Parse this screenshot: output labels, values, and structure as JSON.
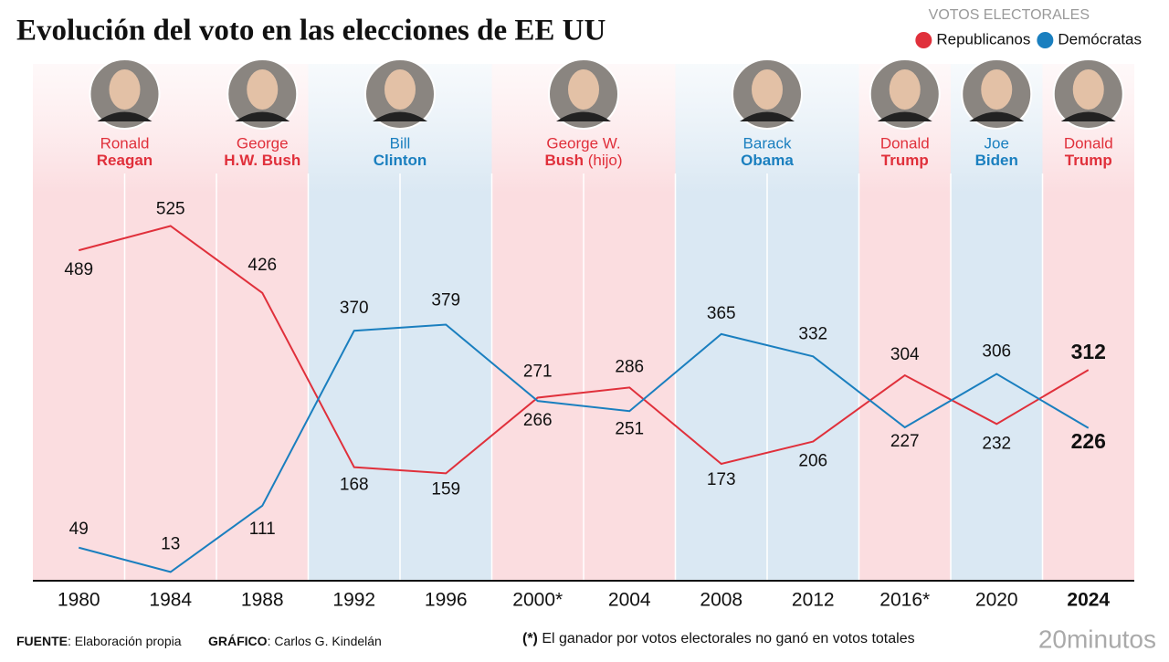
{
  "chart_data": {
    "type": "line",
    "title": "Evolución del voto en las elecciones de EE UU",
    "legend_title": "VOTOS ELECTORALES",
    "categories": [
      "1980",
      "1984",
      "1988",
      "1992",
      "1996",
      "2000*",
      "2004",
      "2008",
      "2012",
      "2016*",
      "2020",
      "2024"
    ],
    "series": [
      {
        "name": "Republicanos",
        "color": "#e0303b",
        "values": [
          489,
          525,
          426,
          168,
          159,
          271,
          286,
          173,
          206,
          304,
          232,
          312
        ]
      },
      {
        "name": "Demócratas",
        "color": "#1a7fbf",
        "values": [
          49,
          13,
          111,
          370,
          379,
          266,
          251,
          365,
          332,
          227,
          306,
          226
        ]
      }
    ],
    "presidents": [
      {
        "first": "Ronald",
        "last": "Reagan",
        "party": "Republicanos"
      },
      {
        "first": "George",
        "last": "H.W. Bush",
        "party": "Republicanos"
      },
      {
        "first": "Bill",
        "last": "Clinton",
        "party": "Demócratas"
      },
      {
        "first": "George W.",
        "last": "Bush",
        "note": "(hijo)",
        "party": "Republicanos"
      },
      {
        "first": "Barack",
        "last": "Obama",
        "party": "Demócratas"
      },
      {
        "first": "Donald",
        "last": "Trump",
        "party": "Republicanos"
      },
      {
        "first": "Joe",
        "last": "Biden",
        "party": "Demócratas"
      },
      {
        "first": "Donald",
        "last": "Trump",
        "party": "Republicanos"
      }
    ],
    "footer": {
      "source_label": "FUENTE",
      "source": ": Elaboración propia",
      "graphic_label": "GRÁFICO",
      "graphic": ": Carlos G. Kindelán",
      "note_mark": "(*)",
      "note": " El ganador por votos electorales no ganó en votos totales",
      "logo": "20minutos"
    }
  }
}
